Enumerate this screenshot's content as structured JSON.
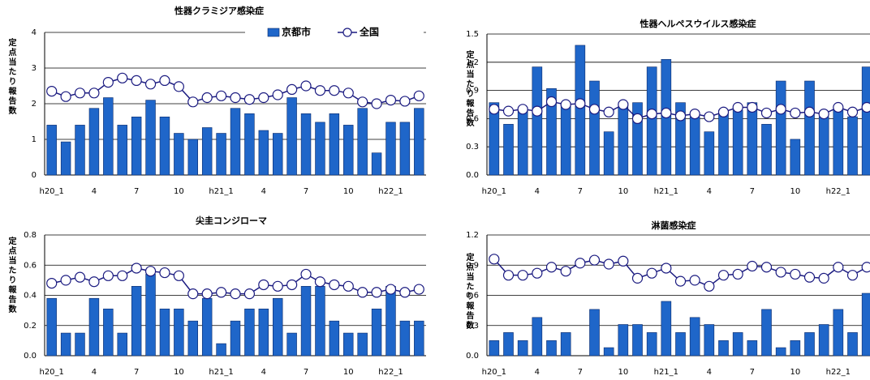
{
  "chart_data": [
    {
      "type": "bar",
      "title": "性器クラミジア感染症",
      "y_label": "定点当たり報告数",
      "legend": "top-right",
      "categories": [
        "h20_1",
        null,
        null,
        "4",
        null,
        null,
        "7",
        null,
        null,
        "10",
        null,
        null,
        "h21_1",
        null,
        null,
        "4",
        null,
        null,
        "7",
        null,
        null,
        "10",
        null,
        null,
        "h22_1",
        null,
        null
      ],
      "ylim": [
        0,
        4
      ],
      "yticks": [
        0,
        1,
        2,
        3,
        4
      ],
      "grid": true,
      "series": [
        {
          "name": "京都市",
          "type": "bar",
          "color": "#1f66c9",
          "values": [
            1.4,
            0.93,
            1.4,
            1.87,
            2.17,
            1.4,
            1.63,
            2.1,
            1.63,
            1.17,
            1.0,
            1.33,
            1.17,
            1.87,
            1.72,
            1.25,
            1.17,
            2.17,
            1.72,
            1.48,
            1.72,
            1.4,
            1.87,
            0.62,
            1.48,
            1.48,
            1.87
          ]
        },
        {
          "name": "全国",
          "type": "line",
          "color": "#1a1a80",
          "values": [
            2.35,
            2.2,
            2.3,
            2.3,
            2.6,
            2.72,
            2.65,
            2.55,
            2.65,
            2.48,
            2.05,
            2.17,
            2.22,
            2.17,
            2.12,
            2.17,
            2.25,
            2.4,
            2.5,
            2.37,
            2.37,
            2.3,
            2.05,
            2.0,
            2.1,
            2.07,
            2.22
          ]
        }
      ]
    },
    {
      "type": "bar",
      "title": "性器ヘルペスウイルス感染症",
      "y_label": "定点当たり報告数",
      "categories": [
        "h20_1",
        null,
        null,
        "4",
        null,
        null,
        "7",
        null,
        null,
        "10",
        null,
        null,
        "h21_1",
        null,
        null,
        "4",
        null,
        null,
        "7",
        null,
        null,
        "10",
        null,
        null,
        "h22_1",
        null,
        null
      ],
      "ylim": [
        0,
        1.5
      ],
      "yticks": [
        {
          "value": 0,
          "label": "0.0"
        },
        0.3,
        0.6,
        0.9,
        1.2,
        1.5
      ],
      "grid": true,
      "series": [
        {
          "type": "bar",
          "color": "#1f66c9",
          "values": [
            0.77,
            0.54,
            0.69,
            1.15,
            0.92,
            0.77,
            1.38,
            1.0,
            0.46,
            0.77,
            0.77,
            1.15,
            1.23,
            0.77,
            0.62,
            0.46,
            0.69,
            0.69,
            0.77,
            0.54,
            1.0,
            0.38,
            1.0,
            0.62,
            0.69,
            0.62,
            1.15
          ]
        },
        {
          "type": "line",
          "color": "#1a1a80",
          "values": [
            0.7,
            0.68,
            0.7,
            0.68,
            0.78,
            0.75,
            0.76,
            0.7,
            0.67,
            0.75,
            0.6,
            0.65,
            0.66,
            0.63,
            0.65,
            0.62,
            0.67,
            0.72,
            0.72,
            0.66,
            0.7,
            0.66,
            0.67,
            0.65,
            0.72,
            0.67,
            0.72
          ]
        }
      ]
    },
    {
      "type": "bar",
      "title": "尖圭コンジローマ",
      "y_label": "定点当たり報告数",
      "categories": [
        "h20_1",
        null,
        null,
        "4",
        null,
        null,
        "7",
        null,
        null,
        "10",
        null,
        null,
        "h21_1",
        null,
        null,
        "4",
        null,
        null,
        "7",
        null,
        null,
        "10",
        null,
        null,
        "h22_1",
        null,
        null
      ],
      "ylim": [
        0,
        0.8
      ],
      "yticks": [
        {
          "value": 0,
          "label": "0.0"
        },
        0.2,
        0.4,
        0.6,
        0.8
      ],
      "grid": true,
      "series": [
        {
          "type": "bar",
          "color": "#1f66c9",
          "values": [
            0.38,
            0.15,
            0.15,
            0.38,
            0.31,
            0.15,
            0.46,
            0.54,
            0.31,
            0.31,
            0.23,
            0.38,
            0.08,
            0.23,
            0.31,
            0.31,
            0.38,
            0.15,
            0.46,
            0.46,
            0.23,
            0.15,
            0.15,
            0.31,
            0.46,
            0.23,
            0.23
          ]
        },
        {
          "type": "line",
          "color": "#1a1a80",
          "values": [
            0.48,
            0.5,
            0.52,
            0.49,
            0.53,
            0.53,
            0.58,
            0.56,
            0.55,
            0.53,
            0.41,
            0.41,
            0.42,
            0.41,
            0.41,
            0.47,
            0.46,
            0.47,
            0.54,
            0.49,
            0.47,
            0.46,
            0.42,
            0.42,
            0.44,
            0.42,
            0.44
          ]
        }
      ]
    },
    {
      "type": "bar",
      "title": "淋菌感染症",
      "y_label": "定点当たり報告数",
      "categories": [
        "h20_1",
        null,
        null,
        "4",
        null,
        null,
        "7",
        null,
        null,
        "10",
        null,
        null,
        "h21_1",
        null,
        null,
        "4",
        null,
        null,
        "7",
        null,
        null,
        "10",
        null,
        null,
        "h22_1",
        null,
        null
      ],
      "ylim": [
        0,
        1.2
      ],
      "yticks": [
        {
          "value": 0,
          "label": "0.0"
        },
        0.3,
        0.6,
        0.9,
        1.2
      ],
      "grid": true,
      "series": [
        {
          "type": "bar",
          "color": "#1f66c9",
          "values": [
            0.15,
            0.23,
            0.15,
            0.38,
            0.15,
            0.23,
            0,
            0.46,
            0.08,
            0.31,
            0.31,
            0.23,
            0.54,
            0.23,
            0.38,
            0.31,
            0.15,
            0.23,
            0.15,
            0.46,
            0.08,
            0.15,
            0.23,
            0.31,
            0.46,
            0.23,
            0.62
          ]
        },
        {
          "type": "line",
          "color": "#1a1a80",
          "values": [
            0.96,
            0.8,
            0.8,
            0.82,
            0.88,
            0.84,
            0.92,
            0.95,
            0.91,
            0.94,
            0.77,
            0.82,
            0.87,
            0.74,
            0.75,
            0.69,
            0.8,
            0.81,
            0.89,
            0.88,
            0.83,
            0.81,
            0.78,
            0.77,
            0.88,
            0.8,
            0.88
          ]
        }
      ]
    }
  ]
}
